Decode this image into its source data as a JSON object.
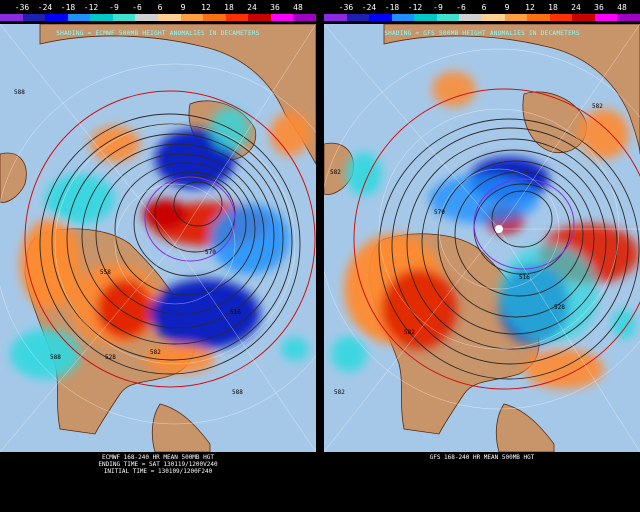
{
  "scale": {
    "labels": [
      "-36",
      "-24",
      "-18",
      "-12",
      "-9",
      "-6",
      "6",
      "9",
      "12",
      "18",
      "24",
      "36",
      "48"
    ],
    "colors": [
      "#8a2be2",
      "#2020b0",
      "#0000ff",
      "#1e90ff",
      "#00c8c8",
      "#40e0d0",
      "#d0d0d0",
      "#ffd090",
      "#ffa040",
      "#ff7010",
      "#ff3000",
      "#c80000",
      "#ff00ff",
      "#a000c0"
    ]
  },
  "left": {
    "title": "SHADING = ECMWF 500MB HEIGHT ANOMALIES IN DECAMETERS",
    "footer_line1": "ECMWF 168-240 HR MEAN 500MB HGT",
    "footer_line2": "ENDING TIME = SAT 130119/1200V240",
    "footer_line3": "INITIAL TIME = 130109/1200F240",
    "contour_labels": [
      "588",
      "570",
      "558",
      "528",
      "516",
      "582",
      "588",
      "588"
    ]
  },
  "right": {
    "title": "SHADING = GFS 500MB HEIGHT ANOMALIES IN DECAMETERS",
    "footer_line1": "GFS 168-240 HR MEAN 500MB HGT",
    "contour_labels": [
      "582",
      "570",
      "516",
      "528",
      "582",
      "582",
      "582"
    ]
  },
  "colors": {
    "ocean": "#a6c8e8",
    "land": "#c8946a",
    "coast": "#5a2a10",
    "contour": "#2a2a2a",
    "anomaly_red": "#e02000",
    "anomaly_orange": "#ff8a30",
    "anomaly_blue": "#1020c0",
    "anomaly_cyan": "#30d8e0"
  }
}
